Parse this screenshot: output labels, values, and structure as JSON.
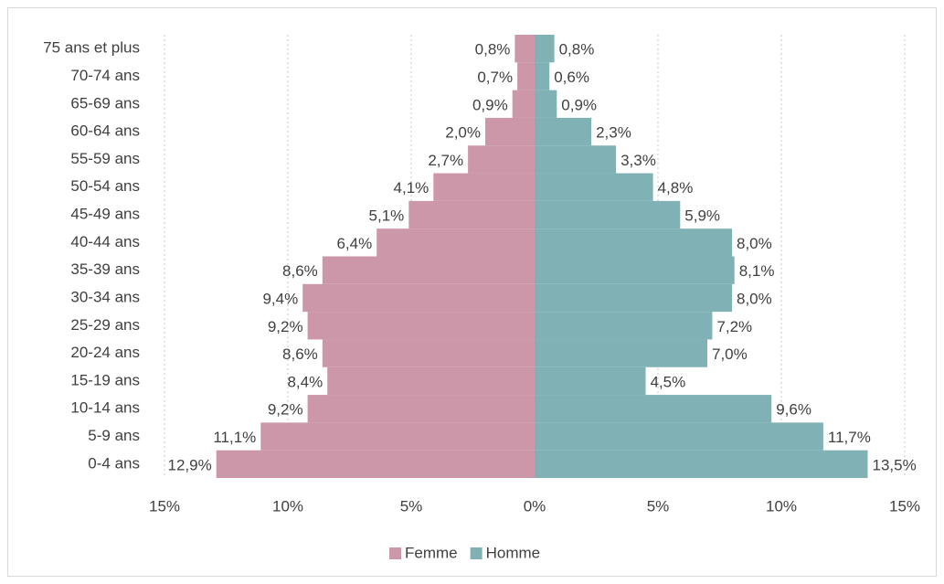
{
  "chart_data": {
    "type": "pyramid",
    "categories": [
      "75 ans et plus",
      "70-74 ans",
      "65-69 ans",
      "60-64 ans",
      "55-59 ans",
      "50-54 ans",
      "45-49 ans",
      "40-44 ans",
      "35-39 ans",
      "30-34 ans",
      "25-29 ans",
      "20-24 ans",
      "15-19 ans",
      "10-14 ans",
      "5-9 ans",
      "0-4 ans"
    ],
    "series": [
      {
        "name": "Femme",
        "color": "#cc97a8",
        "values": [
          0.8,
          0.7,
          0.9,
          2.0,
          2.7,
          4.1,
          5.1,
          6.4,
          8.6,
          9.4,
          9.2,
          8.6,
          8.4,
          9.2,
          11.1,
          12.9
        ],
        "value_labels": [
          "0,8%",
          "0,7%",
          "0,9%",
          "2,0%",
          "2,7%",
          "4,1%",
          "5,1%",
          "6,4%",
          "8,6%",
          "9,4%",
          "9,2%",
          "8,6%",
          "8,4%",
          "9,2%",
          "11,1%",
          "12,9%"
        ]
      },
      {
        "name": "Homme",
        "color": "#80b1b5",
        "values": [
          0.8,
          0.6,
          0.9,
          2.3,
          3.3,
          4.8,
          5.9,
          8.0,
          8.1,
          8.0,
          7.2,
          7.0,
          4.5,
          9.6,
          11.7,
          13.5
        ],
        "value_labels": [
          "0,8%",
          "0,6%",
          "0,9%",
          "2,3%",
          "3,3%",
          "4,8%",
          "5,9%",
          "8,0%",
          "8,1%",
          "8,0%",
          "7,2%",
          "7,0%",
          "4,5%",
          "9,6%",
          "11,7%",
          "13,5%"
        ]
      }
    ],
    "xlim": [
      -15,
      15
    ],
    "xticks": [
      {
        "value": -15,
        "label": "15%"
      },
      {
        "value": -10,
        "label": "10%"
      },
      {
        "value": -5,
        "label": "5%"
      },
      {
        "value": 0,
        "label": "0%"
      },
      {
        "value": 5,
        "label": "5%"
      },
      {
        "value": 10,
        "label": "10%"
      },
      {
        "value": 15,
        "label": "15%"
      }
    ],
    "grid": true,
    "legend": "bottom"
  }
}
